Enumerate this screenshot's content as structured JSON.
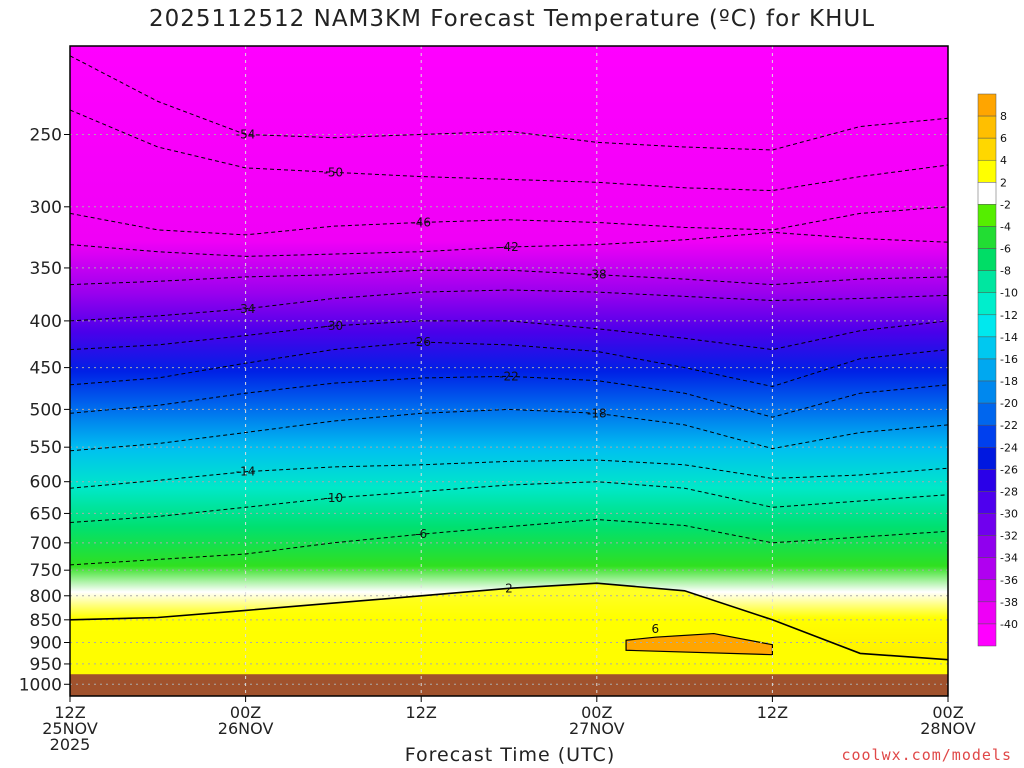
{
  "title": "2025112512 NAM3KM Forecast Temperature (ºC) for KHUL",
  "credit": "coolwx.com/models",
  "chart_data": {
    "type": "heatmap",
    "title": "2025112512 NAM3KM Forecast Temperature (ºC) for KHUL",
    "xlabel": "Forecast Time (UTC)",
    "ylabel": "",
    "y_scale": "log",
    "y_inverted": true,
    "ylim": [
      200,
      1030
    ],
    "y_ticks": [
      250,
      300,
      350,
      400,
      450,
      500,
      550,
      600,
      650,
      700,
      750,
      800,
      850,
      900,
      950,
      1000
    ],
    "x_hours": [
      0,
      12,
      24,
      36,
      48,
      60
    ],
    "x_ticks": [
      {
        "hour": 0,
        "line1": "12Z",
        "line2": "25NOV",
        "line3": "2025"
      },
      {
        "hour": 12,
        "line1": "00Z",
        "line2": "26NOV",
        "line3": ""
      },
      {
        "hour": 24,
        "line1": "12Z",
        "line2": "",
        "line3": ""
      },
      {
        "hour": 36,
        "line1": "00Z",
        "line2": "27NOV",
        "line3": ""
      },
      {
        "hour": 48,
        "line1": "12Z",
        "line2": "",
        "line3": ""
      },
      {
        "hour": 60,
        "line1": "00Z",
        "line2": "28NOV",
        "line3": ""
      }
    ],
    "grid": true,
    "surface_pressure": 975,
    "surface_color": "#a0522d",
    "legend": {
      "placement": "right",
      "labels": [
        "8",
        "6",
        "4",
        "2",
        "-2",
        "-4",
        "-6",
        "-8",
        "-10",
        "-12",
        "-14",
        "-16",
        "-18",
        "-20",
        "-22",
        "-24",
        "-26",
        "-28",
        "-30",
        "-32",
        "-34",
        "-36",
        "-38",
        "-40"
      ],
      "colors": [
        "#ffa500",
        "#ffbf00",
        "#ffd700",
        "#ffff00",
        "#ffffff",
        "#55ee00",
        "#22dd33",
        "#00dd66",
        "#00e6a0",
        "#00eecc",
        "#00e8ee",
        "#00c8f0",
        "#00a8f0",
        "#0088ee",
        "#0066ee",
        "#0040ee",
        "#0018e0",
        "#2a00e8",
        "#4e00ee",
        "#7000ee",
        "#9000ee",
        "#b000f0",
        "#d000f4",
        "#ee00f6",
        "#ff00ff"
      ]
    },
    "isotherms": [
      {
        "label": "-54",
        "hours": [
          0,
          6,
          12,
          18,
          24,
          30,
          36,
          42,
          48,
          54,
          60
        ],
        "p": [
          205,
          230,
          250,
          252,
          250,
          248,
          255,
          258,
          260,
          245,
          240
        ]
      },
      {
        "label": "-50",
        "hours": [
          0,
          6,
          12,
          18,
          24,
          30,
          36,
          42,
          48,
          54,
          60
        ],
        "p": [
          235,
          258,
          272,
          275,
          278,
          280,
          282,
          286,
          288,
          278,
          270
        ]
      },
      {
        "label": "-46",
        "hours": [
          0,
          6,
          12,
          18,
          24,
          30,
          36,
          42,
          48,
          54,
          60
        ],
        "p": [
          305,
          318,
          322,
          315,
          312,
          310,
          312,
          316,
          318,
          305,
          300
        ]
      },
      {
        "label": "-42",
        "hours": [
          0,
          6,
          12,
          18,
          24,
          30,
          36,
          42,
          48,
          54,
          60
        ],
        "p": [
          330,
          336,
          340,
          338,
          336,
          332,
          330,
          326,
          320,
          325,
          328
        ]
      },
      {
        "label": "-38",
        "hours": [
          0,
          6,
          12,
          18,
          24,
          30,
          36,
          42,
          48,
          54,
          60
        ],
        "p": [
          365,
          362,
          358,
          356,
          352,
          352,
          356,
          360,
          365,
          360,
          358
        ]
      },
      {
        "label": "-34",
        "hours": [
          0,
          6,
          12,
          18,
          24,
          30,
          36,
          42,
          48,
          54,
          60
        ],
        "p": [
          400,
          395,
          388,
          378,
          372,
          370,
          372,
          376,
          380,
          378,
          375
        ]
      },
      {
        "label": "-30",
        "hours": [
          0,
          6,
          12,
          18,
          24,
          30,
          36,
          42,
          48,
          54,
          60
        ],
        "p": [
          430,
          425,
          415,
          405,
          400,
          400,
          408,
          418,
          430,
          410,
          400
        ]
      },
      {
        "label": "-26",
        "hours": [
          0,
          6,
          12,
          18,
          24,
          30,
          36,
          42,
          48,
          54,
          60
        ],
        "p": [
          470,
          462,
          445,
          430,
          422,
          425,
          432,
          450,
          472,
          440,
          430
        ]
      },
      {
        "label": "-22",
        "hours": [
          0,
          6,
          12,
          18,
          24,
          30,
          36,
          42,
          48,
          54,
          60
        ],
        "p": [
          505,
          495,
          480,
          468,
          462,
          460,
          465,
          480,
          510,
          480,
          470
        ]
      },
      {
        "label": "-18",
        "hours": [
          0,
          6,
          12,
          18,
          24,
          30,
          36,
          42,
          48,
          54,
          60
        ],
        "p": [
          555,
          545,
          530,
          515,
          505,
          500,
          505,
          520,
          552,
          530,
          520
        ]
      },
      {
        "label": "-14",
        "hours": [
          0,
          6,
          12,
          18,
          24,
          30,
          36,
          42,
          48,
          54,
          60
        ],
        "p": [
          610,
          598,
          585,
          578,
          575,
          570,
          568,
          575,
          595,
          590,
          580
        ]
      },
      {
        "label": "-10",
        "hours": [
          0,
          6,
          12,
          18,
          24,
          30,
          36,
          42,
          48,
          54,
          60
        ],
        "p": [
          665,
          655,
          640,
          625,
          615,
          605,
          600,
          610,
          640,
          630,
          620
        ]
      },
      {
        "label": "-6",
        "hours": [
          0,
          6,
          12,
          18,
          24,
          30,
          36,
          42,
          48,
          54,
          60
        ],
        "p": [
          740,
          730,
          720,
          700,
          685,
          672,
          660,
          670,
          700,
          690,
          680
        ]
      },
      {
        "label": "2",
        "hours": [
          0,
          6,
          12,
          18,
          24,
          30,
          36,
          42,
          48,
          54,
          60
        ],
        "p": [
          850,
          845,
          830,
          815,
          800,
          785,
          775,
          790,
          850,
          925,
          940
        ]
      }
    ],
    "warm_core": {
      "label": "6",
      "hours": [
        38,
        40,
        44,
        48
      ],
      "p": [
        895,
        888,
        880,
        905
      ]
    }
  }
}
